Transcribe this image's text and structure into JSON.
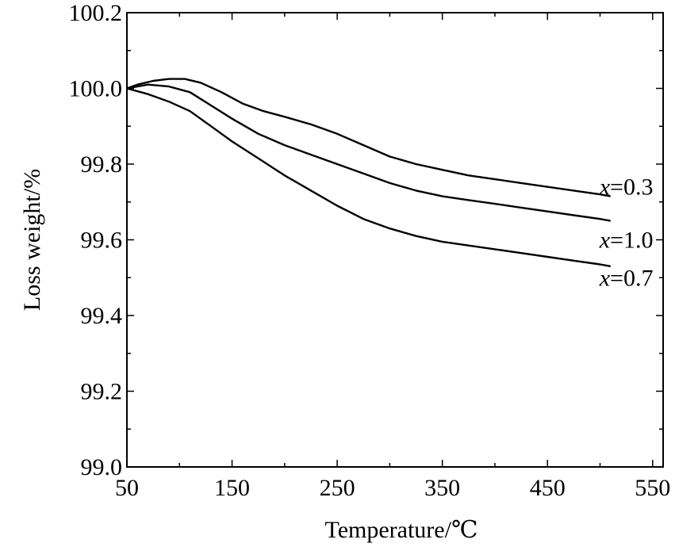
{
  "chart_data": {
    "type": "line",
    "title": "",
    "xlabel": "Temperature/℃",
    "ylabel": "Loss weight/%",
    "xlim": [
      50,
      560
    ],
    "ylim": [
      99.0,
      100.2
    ],
    "xticks": [
      50,
      150,
      250,
      350,
      450,
      550
    ],
    "xtick_labels": [
      "50",
      "150",
      "250",
      "350",
      "450",
      "550"
    ],
    "yticks": [
      99.0,
      99.2,
      99.4,
      99.6,
      99.8,
      100.0,
      100.2
    ],
    "ytick_labels": [
      "99.0",
      "99.2",
      "99.4",
      "99.6",
      "99.8",
      "100.0",
      "100.2"
    ],
    "grid": false,
    "series": [
      {
        "name": "x=0.3",
        "label_var": "x",
        "label_rest": "=0.3",
        "x": [
          50,
          60,
          75,
          90,
          105,
          120,
          140,
          160,
          180,
          200,
          225,
          250,
          275,
          300,
          325,
          350,
          375,
          400,
          425,
          450,
          475,
          500,
          510
        ],
        "y": [
          100.0,
          100.01,
          100.02,
          100.025,
          100.025,
          100.015,
          99.99,
          99.96,
          99.94,
          99.925,
          99.905,
          99.88,
          99.85,
          99.82,
          99.8,
          99.785,
          99.77,
          99.76,
          99.75,
          99.74,
          99.73,
          99.72,
          99.715
        ]
      },
      {
        "name": "x=1.0",
        "label_var": "x",
        "label_rest": "=1.0",
        "x": [
          50,
          70,
          90,
          110,
          130,
          150,
          175,
          200,
          225,
          250,
          275,
          300,
          325,
          350,
          375,
          400,
          425,
          450,
          475,
          500,
          510
        ],
        "y": [
          100.0,
          100.01,
          100.005,
          99.99,
          99.955,
          99.92,
          99.88,
          99.85,
          99.825,
          99.8,
          99.775,
          99.75,
          99.73,
          99.715,
          99.705,
          99.695,
          99.685,
          99.675,
          99.665,
          99.655,
          99.65
        ]
      },
      {
        "name": "x=0.7",
        "label_var": "x",
        "label_rest": "=0.7",
        "x": [
          50,
          70,
          90,
          110,
          130,
          150,
          175,
          200,
          225,
          250,
          275,
          300,
          325,
          350,
          375,
          400,
          425,
          450,
          475,
          500,
          510
        ],
        "y": [
          100.0,
          99.985,
          99.965,
          99.94,
          99.9,
          99.86,
          99.815,
          99.77,
          99.73,
          99.69,
          99.655,
          99.63,
          99.61,
          99.595,
          99.585,
          99.575,
          99.565,
          99.555,
          99.545,
          99.535,
          99.53
        ]
      }
    ]
  }
}
